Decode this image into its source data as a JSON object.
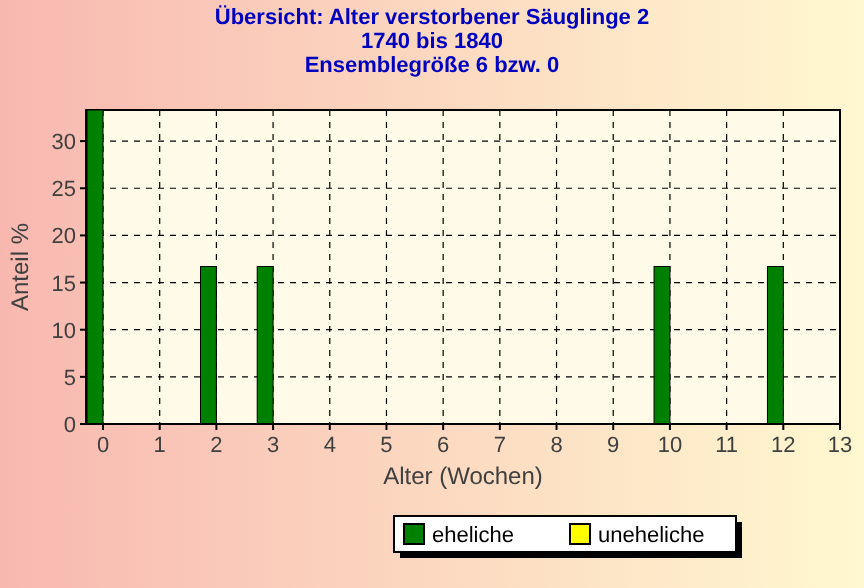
{
  "chart_data": {
    "type": "bar",
    "title": "Übersicht: Alter verstorbener Säuglinge 2\n1740 bis 1840\nEnsemblegröße 6 bzw. 0",
    "xlabel": "Alter (Wochen)",
    "ylabel": "Anteil %",
    "x": [
      0,
      2,
      3,
      10,
      12
    ],
    "series": [
      {
        "name": "eheliche",
        "color": "#008000",
        "values": [
          33.3,
          16.7,
          16.7,
          16.7,
          16.7
        ]
      },
      {
        "name": "uneheliche",
        "color": "#ffff00",
        "values": [
          0,
          0,
          0,
          0,
          0
        ]
      }
    ],
    "xlim": [
      -0.3,
      13
    ],
    "xticks": [
      0,
      1,
      2,
      3,
      4,
      5,
      6,
      7,
      8,
      9,
      10,
      11,
      12,
      13
    ],
    "ylim": [
      0,
      33.3
    ],
    "yticks": [
      0,
      5,
      10,
      15,
      20,
      25,
      30
    ],
    "grid": true,
    "legend": "bottom"
  }
}
